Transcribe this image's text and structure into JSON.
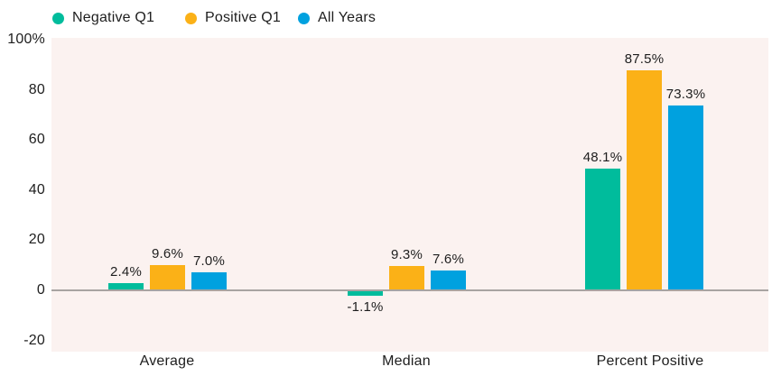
{
  "chart_data": {
    "type": "bar",
    "title": "",
    "xlabel": "",
    "ylabel": "",
    "categories": [
      "Average",
      "Median",
      "Percent Positive"
    ],
    "series": [
      {
        "name": "Negative Q1",
        "color": "#00BC9C",
        "values": [
          2.4,
          -1.1,
          48.1
        ],
        "labels": [
          "2.4%",
          "-1.1%",
          "48.1%"
        ]
      },
      {
        "name": "Positive Q1",
        "color": "#FBB117",
        "values": [
          9.6,
          9.3,
          87.5
        ],
        "labels": [
          "9.6%",
          "9.3%",
          "87.5%"
        ]
      },
      {
        "name": "All Years",
        "color": "#00A1DF",
        "values": [
          7.0,
          7.6,
          73.3
        ],
        "labels": [
          "7.0%",
          "7.6%",
          "73.3%"
        ]
      }
    ],
    "y_ticks": [
      {
        "label": "100%",
        "value": 100
      },
      {
        "label": "80",
        "value": 80
      },
      {
        "label": "60",
        "value": 60
      },
      {
        "label": "40",
        "value": 40
      },
      {
        "label": "20",
        "value": 20
      },
      {
        "label": "0",
        "value": 0
      },
      {
        "label": "-20",
        "value": -20
      }
    ],
    "ylim": [
      -20,
      100
    ],
    "legend_position": "top",
    "grid": false,
    "colors": {
      "plot_background": "#FBF2F0",
      "page_background": "#FFFFFF",
      "axis_line": "#A8A4A2",
      "text": "#1E1E1E"
    }
  }
}
